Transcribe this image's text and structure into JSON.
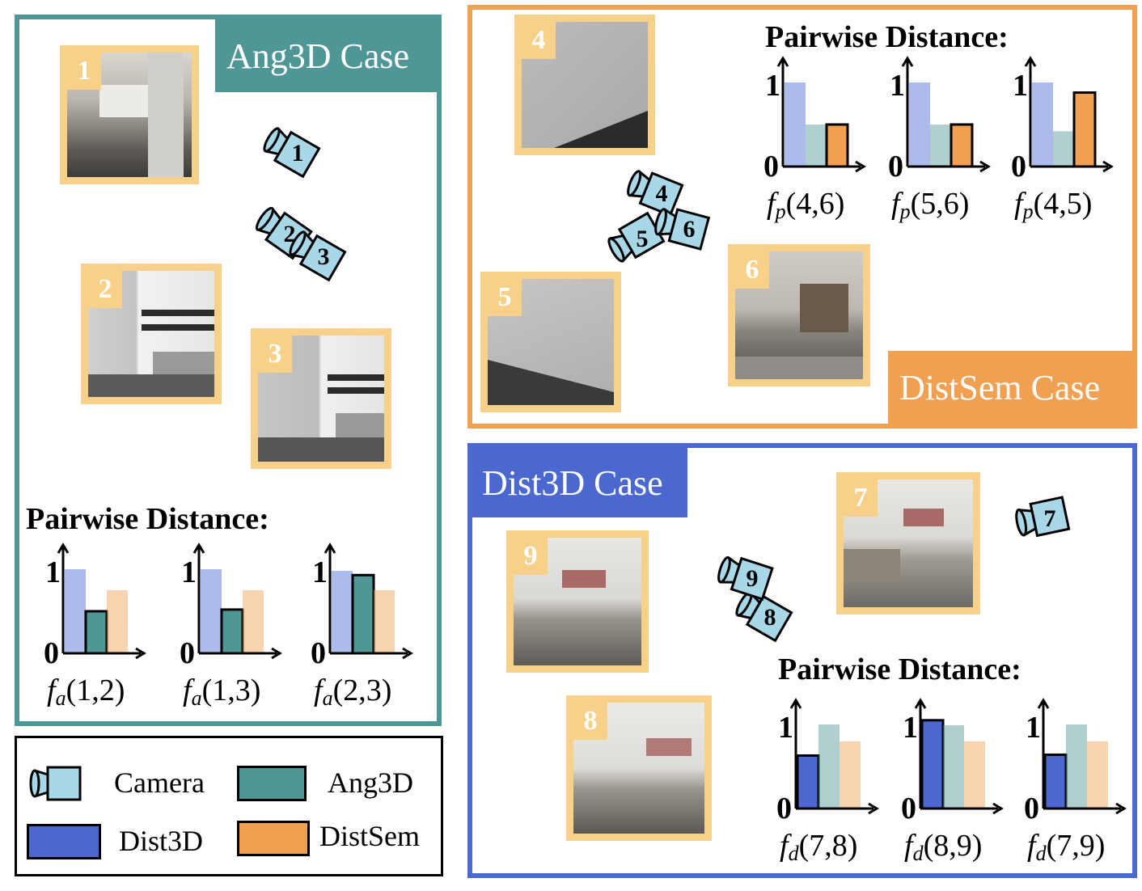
{
  "colors": {
    "ang3d": "#4f9696",
    "distsem": "#f0a050",
    "dist3d": "#4a68d0",
    "camera": "#a8d8e8",
    "thumb_border": "#f7d18a"
  },
  "panels": {
    "ang3d": {
      "label": "Ang3D Case"
    },
    "distsem": {
      "label": "DistSem Case"
    },
    "dist3d": {
      "label": "Dist3D Case"
    }
  },
  "pairwise_title": "Pairwise Distance:",
  "thumbnails": [
    {
      "num": "1",
      "scene": "kitchen"
    },
    {
      "num": "2",
      "scene": "kitchen"
    },
    {
      "num": "3",
      "scene": "kitchen"
    },
    {
      "num": "4",
      "scene": "wall"
    },
    {
      "num": "5",
      "scene": "wall"
    },
    {
      "num": "6",
      "scene": "living room"
    },
    {
      "num": "7",
      "scene": "living room"
    },
    {
      "num": "8",
      "scene": "living room"
    },
    {
      "num": "9",
      "scene": "living room"
    }
  ],
  "cameras": [
    "1",
    "2",
    "3",
    "4",
    "5",
    "6",
    "7",
    "8",
    "9"
  ],
  "chart_data": [
    {
      "type": "bar",
      "group": "Ang3D",
      "func": "f",
      "sub": "a",
      "args": "(1,2)",
      "ytick_top": "1",
      "ytick_bottom": "0",
      "series": [
        {
          "name": "Dist3D",
          "value": 1.0
        },
        {
          "name": "Ang3D",
          "value": 0.5
        },
        {
          "name": "DistSem",
          "value": 0.75
        }
      ],
      "highlight": "Ang3D"
    },
    {
      "type": "bar",
      "group": "Ang3D",
      "func": "f",
      "sub": "a",
      "args": "(1,3)",
      "ytick_top": "1",
      "ytick_bottom": "0",
      "series": [
        {
          "name": "Dist3D",
          "value": 1.0
        },
        {
          "name": "Ang3D",
          "value": 0.52
        },
        {
          "name": "DistSem",
          "value": 0.75
        }
      ],
      "highlight": "Ang3D"
    },
    {
      "type": "bar",
      "group": "Ang3D",
      "func": "f",
      "sub": "a",
      "args": "(2,3)",
      "ytick_top": "1",
      "ytick_bottom": "0",
      "series": [
        {
          "name": "Dist3D",
          "value": 0.98
        },
        {
          "name": "Ang3D",
          "value": 0.93
        },
        {
          "name": "DistSem",
          "value": 0.75
        }
      ],
      "highlight": "Ang3D"
    },
    {
      "type": "bar",
      "group": "DistSem",
      "func": "f",
      "sub": "p",
      "args": "(4,6)",
      "ytick_top": "1",
      "ytick_bottom": "0",
      "series": [
        {
          "name": "Dist3D",
          "value": 1.0
        },
        {
          "name": "Ang3D",
          "value": 0.5
        },
        {
          "name": "DistSem",
          "value": 0.5
        }
      ],
      "highlight": "DistSem"
    },
    {
      "type": "bar",
      "group": "DistSem",
      "func": "f",
      "sub": "p",
      "args": "(5,6)",
      "ytick_top": "1",
      "ytick_bottom": "0",
      "series": [
        {
          "name": "Dist3D",
          "value": 1.0
        },
        {
          "name": "Ang3D",
          "value": 0.5
        },
        {
          "name": "DistSem",
          "value": 0.5
        }
      ],
      "highlight": "DistSem"
    },
    {
      "type": "bar",
      "group": "DistSem",
      "func": "f",
      "sub": "p",
      "args": "(4,5)",
      "ytick_top": "1",
      "ytick_bottom": "0",
      "series": [
        {
          "name": "Dist3D",
          "value": 1.0
        },
        {
          "name": "Ang3D",
          "value": 0.42
        },
        {
          "name": "DistSem",
          "value": 0.88
        }
      ],
      "highlight": "DistSem"
    },
    {
      "type": "bar",
      "group": "Dist3D",
      "func": "f",
      "sub": "d",
      "args": "(7,8)",
      "ytick_top": "1",
      "ytick_bottom": "0",
      "series": [
        {
          "name": "Dist3D",
          "value": 0.63
        },
        {
          "name": "Ang3D",
          "value": 1.0
        },
        {
          "name": "DistSem",
          "value": 0.8
        }
      ],
      "highlight": "Dist3D"
    },
    {
      "type": "bar",
      "group": "Dist3D",
      "func": "f",
      "sub": "d",
      "args": "(8,9)",
      "ytick_top": "1",
      "ytick_bottom": "0",
      "series": [
        {
          "name": "Dist3D",
          "value": 1.05
        },
        {
          "name": "Ang3D",
          "value": 0.99
        },
        {
          "name": "DistSem",
          "value": 0.8
        }
      ],
      "highlight": "Dist3D"
    },
    {
      "type": "bar",
      "group": "Dist3D",
      "func": "f",
      "sub": "d",
      "args": "(7,9)",
      "ytick_top": "1",
      "ytick_bottom": "0",
      "series": [
        {
          "name": "Dist3D",
          "value": 0.64
        },
        {
          "name": "Ang3D",
          "value": 1.0
        },
        {
          "name": "DistSem",
          "value": 0.8
        }
      ],
      "highlight": "Dist3D"
    }
  ],
  "legend": {
    "camera": "Camera",
    "ang3d": "Ang3D",
    "dist3d": "Dist3D",
    "distsem": "DistSem"
  }
}
